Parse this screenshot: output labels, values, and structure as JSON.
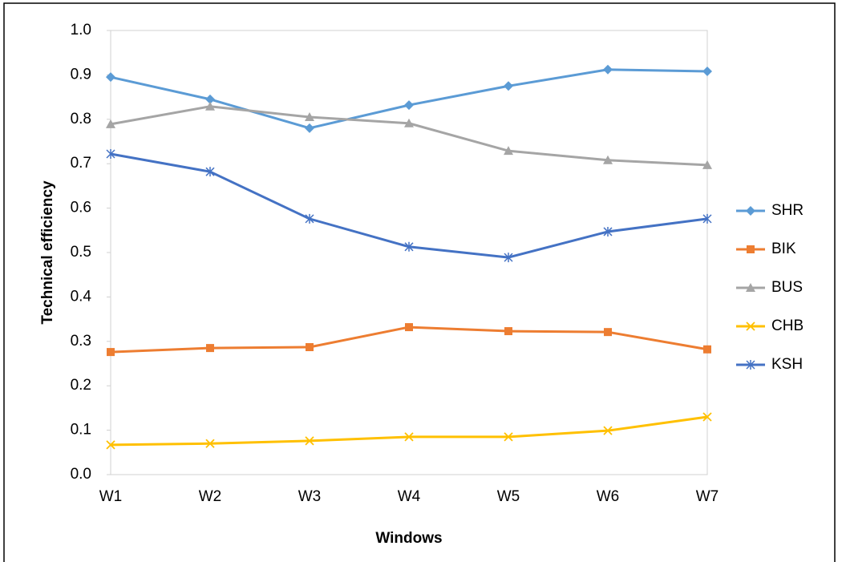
{
  "chart_data": {
    "type": "line",
    "xlabel": "Windows",
    "ylabel": "Technical efficiency",
    "categories": [
      "W1",
      "W2",
      "W3",
      "W4",
      "W5",
      "W6",
      "W7"
    ],
    "series": [
      {
        "name": "SHR",
        "color": "#5b9bd5",
        "marker": "diamond",
        "values": [
          0.895,
          0.845,
          0.78,
          0.832,
          0.875,
          0.912,
          0.908
        ]
      },
      {
        "name": "BIK",
        "color": "#ed7d31",
        "marker": "square",
        "values": [
          0.276,
          0.285,
          0.287,
          0.332,
          0.323,
          0.321,
          0.282
        ]
      },
      {
        "name": "BUS",
        "color": "#a5a5a5",
        "marker": "triangle",
        "values": [
          0.789,
          0.829,
          0.805,
          0.791,
          0.729,
          0.708,
          0.697
        ]
      },
      {
        "name": "CHB",
        "color": "#ffc000",
        "marker": "x",
        "values": [
          0.067,
          0.07,
          0.076,
          0.085,
          0.085,
          0.099,
          0.13
        ]
      },
      {
        "name": "KSH",
        "color": "#4472c4",
        "marker": "asterisk",
        "values": [
          0.722,
          0.682,
          0.576,
          0.513,
          0.489,
          0.547,
          0.576
        ]
      }
    ],
    "ylim": [
      0,
      1
    ],
    "yticks": [
      {
        "value": 0,
        "label": "0.0"
      },
      0.1,
      0.2,
      0.3,
      0.4,
      0.5,
      0.6,
      0.7,
      0.8,
      0.9,
      {
        "value": 1,
        "label": "1.0"
      }
    ],
    "grid": false,
    "legend": "right"
  }
}
